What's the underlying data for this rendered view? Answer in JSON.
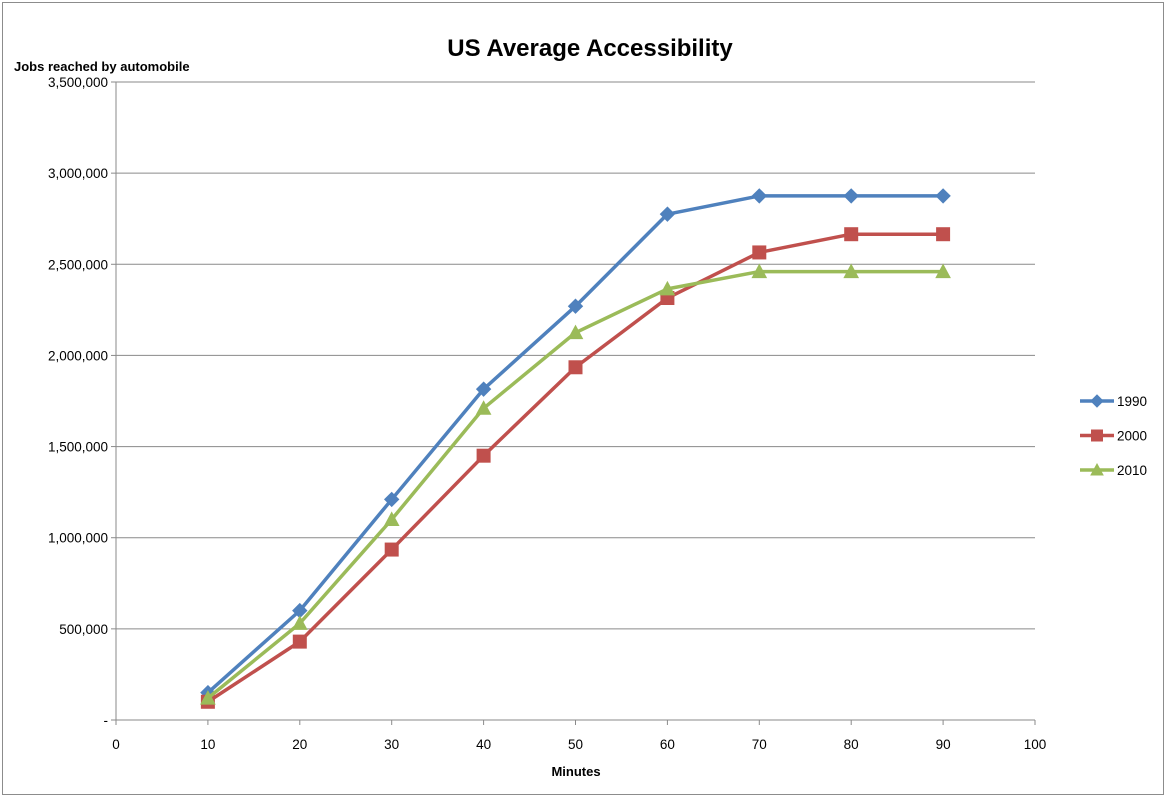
{
  "chart_data": {
    "type": "line",
    "title": "US Average Accessibility",
    "ylabel": "Jobs reached by automobile",
    "xlabel": "Minutes",
    "xlim": [
      0,
      100
    ],
    "ylim": [
      0,
      3500000
    ],
    "x_ticks": [
      0,
      10,
      20,
      30,
      40,
      50,
      60,
      70,
      80,
      90,
      100
    ],
    "x_tick_labels": [
      "0",
      "10",
      "20",
      "30",
      "40",
      "50",
      "60",
      "70",
      "80",
      "90",
      "100"
    ],
    "y_ticks": [
      0,
      500000,
      1000000,
      1500000,
      2000000,
      2500000,
      3000000,
      3500000
    ],
    "y_tick_labels": [
      "-",
      "500,000",
      "1,000,000",
      "1,500,000",
      "2,000,000",
      "2,500,000",
      "3,000,000",
      "3,500,000"
    ],
    "grid": "horizontal",
    "legend_position": "right",
    "x": [
      10,
      20,
      30,
      40,
      50,
      60,
      70,
      80,
      90
    ],
    "series": [
      {
        "name": "1990",
        "color": "#4f81bd",
        "marker": "diamond",
        "values": [
          150000,
          600000,
          1210000,
          1815000,
          2270000,
          2775000,
          2875000,
          2875000,
          2875000
        ]
      },
      {
        "name": "2000",
        "color": "#c0504d",
        "marker": "square",
        "values": [
          100000,
          430000,
          935000,
          1450000,
          1935000,
          2315000,
          2565000,
          2665000,
          2665000
        ]
      },
      {
        "name": "2010",
        "color": "#9bbb59",
        "marker": "triangle",
        "values": [
          120000,
          530000,
          1100000,
          1710000,
          2125000,
          2365000,
          2460000,
          2460000,
          2460000
        ]
      }
    ]
  }
}
